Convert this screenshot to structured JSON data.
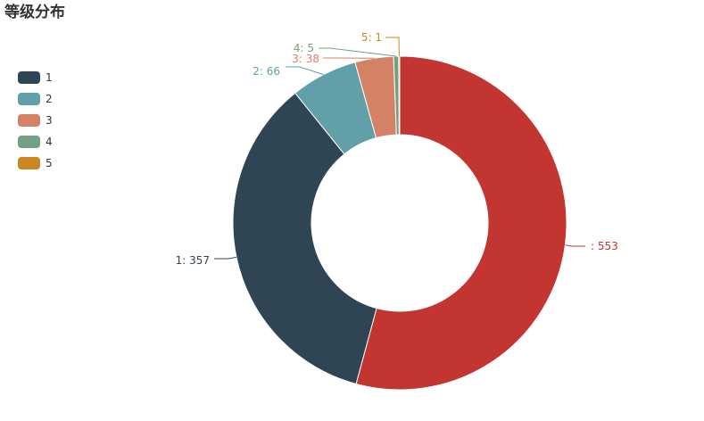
{
  "title": "等级分布",
  "chart_data": {
    "type": "pie",
    "variant": "donut",
    "title": "等级分布",
    "legend_position": "left",
    "slices": [
      {
        "name": "",
        "value": 553,
        "color": "#c23531",
        "label": ": 553",
        "in_legend": false
      },
      {
        "name": "1",
        "value": 357,
        "color": "#2f4554",
        "label": "1: 357",
        "in_legend": true
      },
      {
        "name": "2",
        "value": 66,
        "color": "#61a0a8",
        "label": "2: 66",
        "in_legend": true
      },
      {
        "name": "3",
        "value": 38,
        "color": "#d48265",
        "label": "3: 38",
        "in_legend": true
      },
      {
        "name": "4",
        "value": 5,
        "color": "#749f83",
        "label": "4: 5",
        "in_legend": true
      },
      {
        "name": "5",
        "value": 1,
        "color": "#ca8622",
        "label": "5: 1",
        "in_legend": true
      }
    ]
  }
}
